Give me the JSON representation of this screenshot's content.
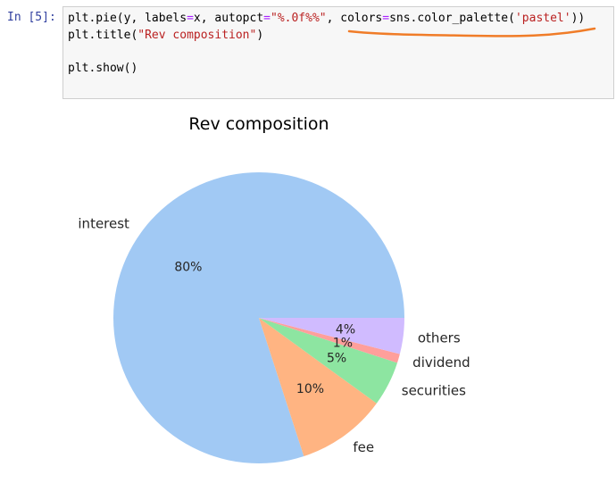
{
  "cell": {
    "prompt": "In [5]:",
    "lines": [
      [
        {
          "t": "plt.pie(y, labels",
          "c": "kw"
        },
        {
          "t": "=",
          "c": "eq"
        },
        {
          "t": "x, autopct",
          "c": "kw"
        },
        {
          "t": "=",
          "c": "eq"
        },
        {
          "t": "\"%.0f%%\"",
          "c": "str"
        },
        {
          "t": ", colors",
          "c": "kw"
        },
        {
          "t": "=",
          "c": "eq"
        },
        {
          "t": "sns.color_palette(",
          "c": "kw"
        },
        {
          "t": "'pastel'",
          "c": "str"
        },
        {
          "t": "))",
          "c": "kw"
        }
      ],
      [
        {
          "t": "plt.title(",
          "c": "kw"
        },
        {
          "t": "\"Rev composition\"",
          "c": "str"
        },
        {
          "t": ")",
          "c": "kw"
        }
      ],
      [],
      [
        {
          "t": "plt.show()",
          "c": "kw"
        }
      ]
    ],
    "annotation_color": "#f07c28"
  },
  "chart_data": {
    "type": "pie",
    "title": "Rev composition",
    "categories": [
      "interest",
      "fee",
      "securities",
      "dividend",
      "others"
    ],
    "values": [
      80,
      10,
      5,
      1,
      4
    ],
    "percent_labels": [
      "80%",
      "10%",
      "5%",
      "1%",
      "4%"
    ],
    "colors": [
      "#a1c9f4",
      "#ffb482",
      "#8de5a1",
      "#ff9f9b",
      "#d0bbff"
    ],
    "start_angle_deg": 0,
    "direction": "counterclockwise"
  }
}
